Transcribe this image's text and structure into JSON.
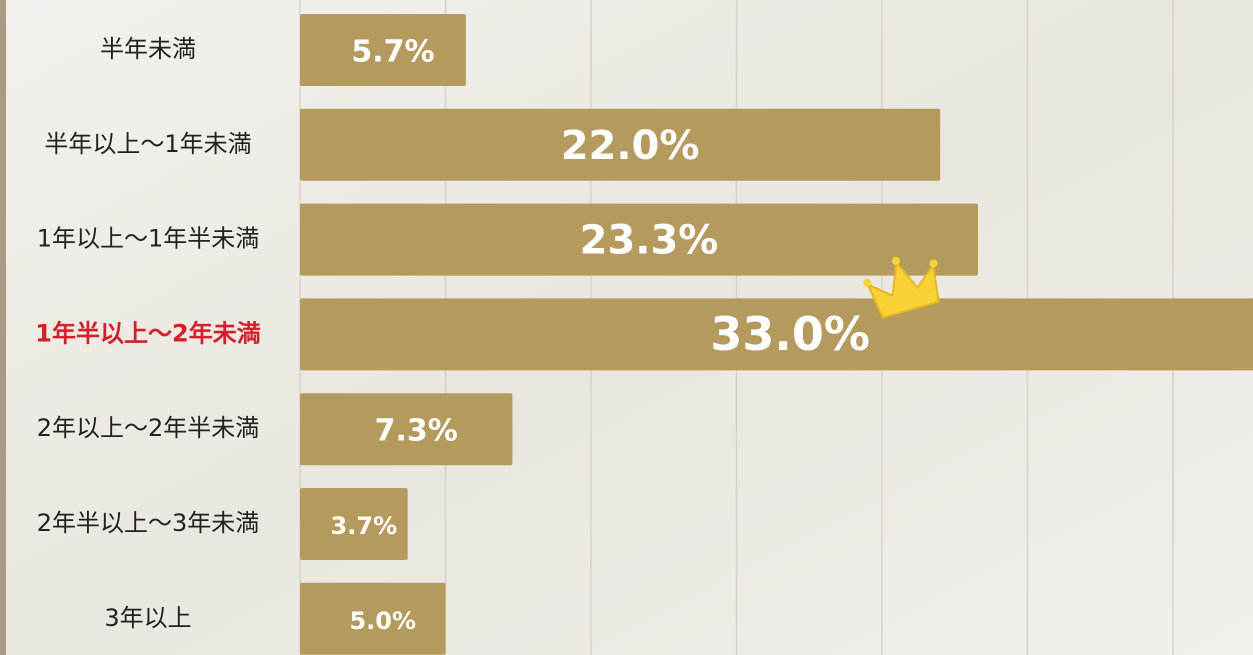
{
  "chart_data": {
    "type": "barh",
    "categories": [
      "半年未満",
      "半年以上～1年未満",
      "1年以上～1年半未満",
      "1年半以上～2年未満",
      "2年以上～2年半未満",
      "2年半以上～3年未満",
      "3年以上"
    ],
    "values": [
      5.7,
      22.0,
      23.3,
      33.0,
      7.3,
      3.7,
      5.0
    ],
    "value_labels": [
      "5.7%",
      "22.0%",
      "23.3%",
      "33.0%",
      "7.3%",
      "3.7%",
      "5.0%"
    ],
    "color": "#b59a5e",
    "label_colors": [
      "#222222",
      "#222222",
      "#222222",
      "#d4202a",
      "#222222",
      "#222222",
      "#222222"
    ],
    "xlim": [
      0,
      32.75
    ],
    "xticks": [
      0,
      5,
      10,
      15,
      20,
      25,
      30
    ],
    "grid": true
  }
}
